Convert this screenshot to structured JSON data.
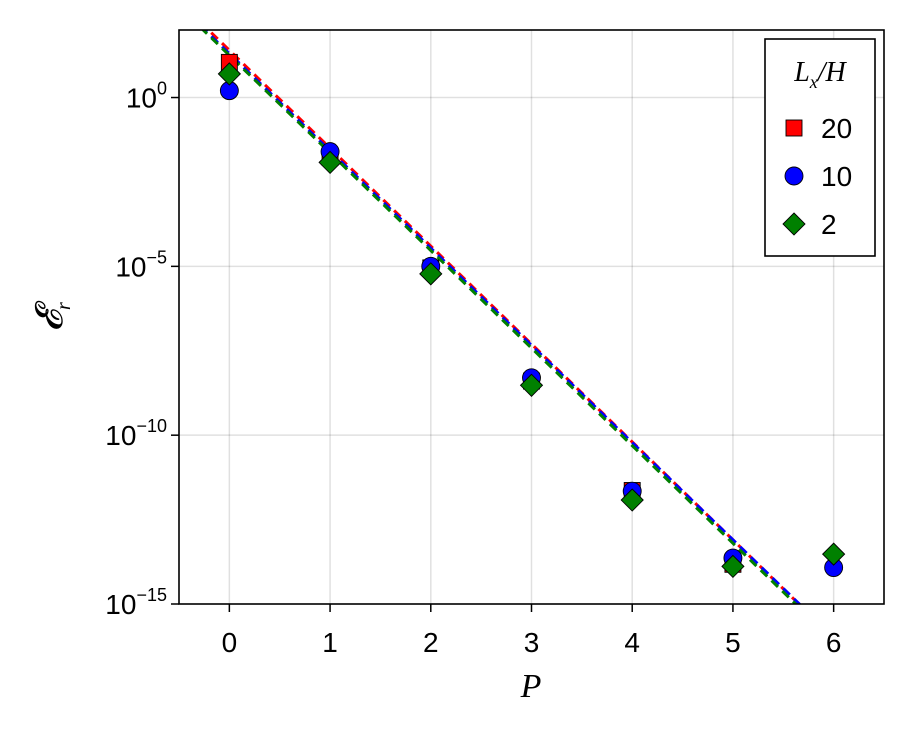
{
  "chart_data": {
    "type": "scatter",
    "xlabel": "P",
    "ylabel": "𝓔",
    "ylabel_sub": "r",
    "xlim": [
      -0.5,
      6.5
    ],
    "ylim_log10": [
      -15,
      2
    ],
    "yscale": "log",
    "grid": true,
    "legend_position": "top-right",
    "legend_title": {
      "main": "L",
      "sub": "x",
      "rest": "/H"
    },
    "x_ticks": [
      "0",
      "1",
      "2",
      "3",
      "4",
      "5",
      "6"
    ],
    "y_ticks": [
      {
        "base": "10",
        "exp": "0",
        "value": 0
      },
      {
        "base": "10",
        "exp": "−5",
        "value": -5
      },
      {
        "base": "10",
        "exp": "−10",
        "value": -10
      },
      {
        "base": "10",
        "exp": "−15",
        "value": -15
      }
    ],
    "series": [
      {
        "name": "20",
        "marker": "square",
        "color": "#ff0000",
        "x": [
          0,
          1,
          2,
          3,
          4,
          5
        ],
        "y": [
          11.0,
          0.017,
          9e-06,
          4e-09,
          2.3e-12,
          1.5e-14
        ],
        "fit": {
          "intercept_log10": 1.4,
          "slope_log10": -2.9
        }
      },
      {
        "name": "10",
        "marker": "circle",
        "color": "#0000ff",
        "x": [
          0,
          1,
          2,
          3,
          4,
          5,
          6
        ],
        "y": [
          1.6,
          0.025,
          1e-05,
          5e-09,
          2.2e-12,
          2.3e-14,
          1.2e-14
        ],
        "fit": {
          "intercept_log10": 1.3,
          "slope_log10": -2.88
        }
      },
      {
        "name": "2",
        "marker": "diamond",
        "color": "#008000",
        "x": [
          0,
          1,
          2,
          3,
          4,
          5,
          6
        ],
        "y": [
          5.0,
          0.012,
          6e-06,
          3e-09,
          1.2e-12,
          1.3e-14,
          3e-14
        ],
        "fit": {
          "intercept_log10": 1.25,
          "slope_log10": -2.89
        }
      }
    ]
  }
}
